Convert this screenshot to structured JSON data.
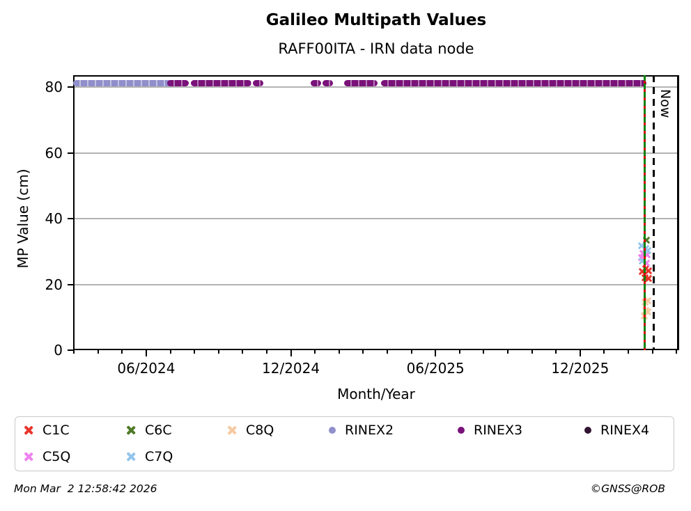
{
  "header": {
    "title": "Galileo Multipath Values",
    "subtitle": "RAFF00ITA - IRN data node"
  },
  "footer": {
    "timestamp": "Mon Mar  2 12:58:42 2026",
    "copyright": "©GNSS@ROB"
  },
  "legend": {
    "items": [
      {
        "label": "C1C"
      },
      {
        "label": "C6C"
      },
      {
        "label": "C8Q"
      },
      {
        "label": "RINEX2"
      },
      {
        "label": "RINEX3"
      },
      {
        "label": "RINEX4"
      },
      {
        "label": "C5Q"
      },
      {
        "label": "C7Q"
      }
    ]
  },
  "chart_data": {
    "type": "scatter",
    "title": "Galileo Multipath Values",
    "subtitle": "RAFF00ITA - IRN data node",
    "xlabel": "Month/Year",
    "ylabel": "MP Value (cm)",
    "xlim": [
      2024.164,
      2026.259
    ],
    "ylim": [
      0,
      83.6
    ],
    "grid": "horizontal-gray",
    "y_ticks": [
      0,
      20,
      40,
      60,
      80
    ],
    "x_major_ticks": [
      {
        "value": 2024.4167,
        "label": "06/2024"
      },
      {
        "value": 2024.9167,
        "label": "12/2024"
      },
      {
        "value": 2025.4167,
        "label": "06/2025"
      },
      {
        "value": 2025.9167,
        "label": "12/2025"
      }
    ],
    "x_minor_tick_interval_months": 1,
    "band_y": 81.5,
    "series": [
      {
        "name": "C1C",
        "marker": "x",
        "color": "#e8352b",
        "points": [
          [
            2026.139,
            25.2
          ],
          [
            2026.148,
            24.6
          ],
          [
            2026.126,
            24.3
          ],
          [
            2026.136,
            22.4
          ],
          [
            2026.148,
            22.2
          ]
        ]
      },
      {
        "name": "C6C",
        "marker": "x",
        "color": "#4e7a27",
        "points": [
          [
            2026.141,
            33.9
          ]
        ]
      },
      {
        "name": "C8Q",
        "marker": "x",
        "color": "#f6c9a0",
        "points": [
          [
            2026.146,
            15.4
          ],
          [
            2026.136,
            15.0
          ],
          [
            2026.139,
            12.5
          ],
          [
            2026.146,
            12.1
          ],
          [
            2026.134,
            10.8
          ]
        ]
      },
      {
        "name": "RINEX2",
        "marker": "circle",
        "color": "#908fcb",
        "band_segments": [
          [
            2024.169,
            2024.494
          ]
        ]
      },
      {
        "name": "RINEX3",
        "marker": "circle",
        "color": "#7a127a",
        "band_segments": [
          [
            2024.494,
            2024.549
          ],
          [
            2024.576,
            2024.766
          ],
          [
            2024.79,
            2024.807
          ],
          [
            2024.99,
            2025.007
          ],
          [
            2025.031,
            2025.048
          ],
          [
            2025.105,
            2025.202
          ],
          [
            2025.233,
            2026.131
          ]
        ]
      },
      {
        "name": "RINEX4",
        "marker": "circle",
        "color": "#321432",
        "points": []
      },
      {
        "name": "C5Q",
        "marker": "x",
        "color": "#ef82ef",
        "points": [
          [
            2026.129,
            29.8
          ],
          [
            2026.143,
            29.4
          ],
          [
            2026.124,
            28.6
          ],
          [
            2026.141,
            26.9
          ]
        ]
      },
      {
        "name": "C7Q",
        "marker": "x",
        "color": "#94c5ec",
        "points": [
          [
            2026.124,
            32.2
          ],
          [
            2026.139,
            31.3
          ],
          [
            2026.146,
            30.7
          ],
          [
            2026.126,
            27.5
          ]
        ]
      }
    ],
    "annotations": {
      "now_line": {
        "x": 2026.17,
        "style": "dashed",
        "color": "#000000",
        "label": "Now"
      },
      "event_line": {
        "x": 2026.139,
        "style": "solid-dashed-overlay",
        "colors": [
          "#008000",
          "#d40000"
        ]
      }
    }
  }
}
